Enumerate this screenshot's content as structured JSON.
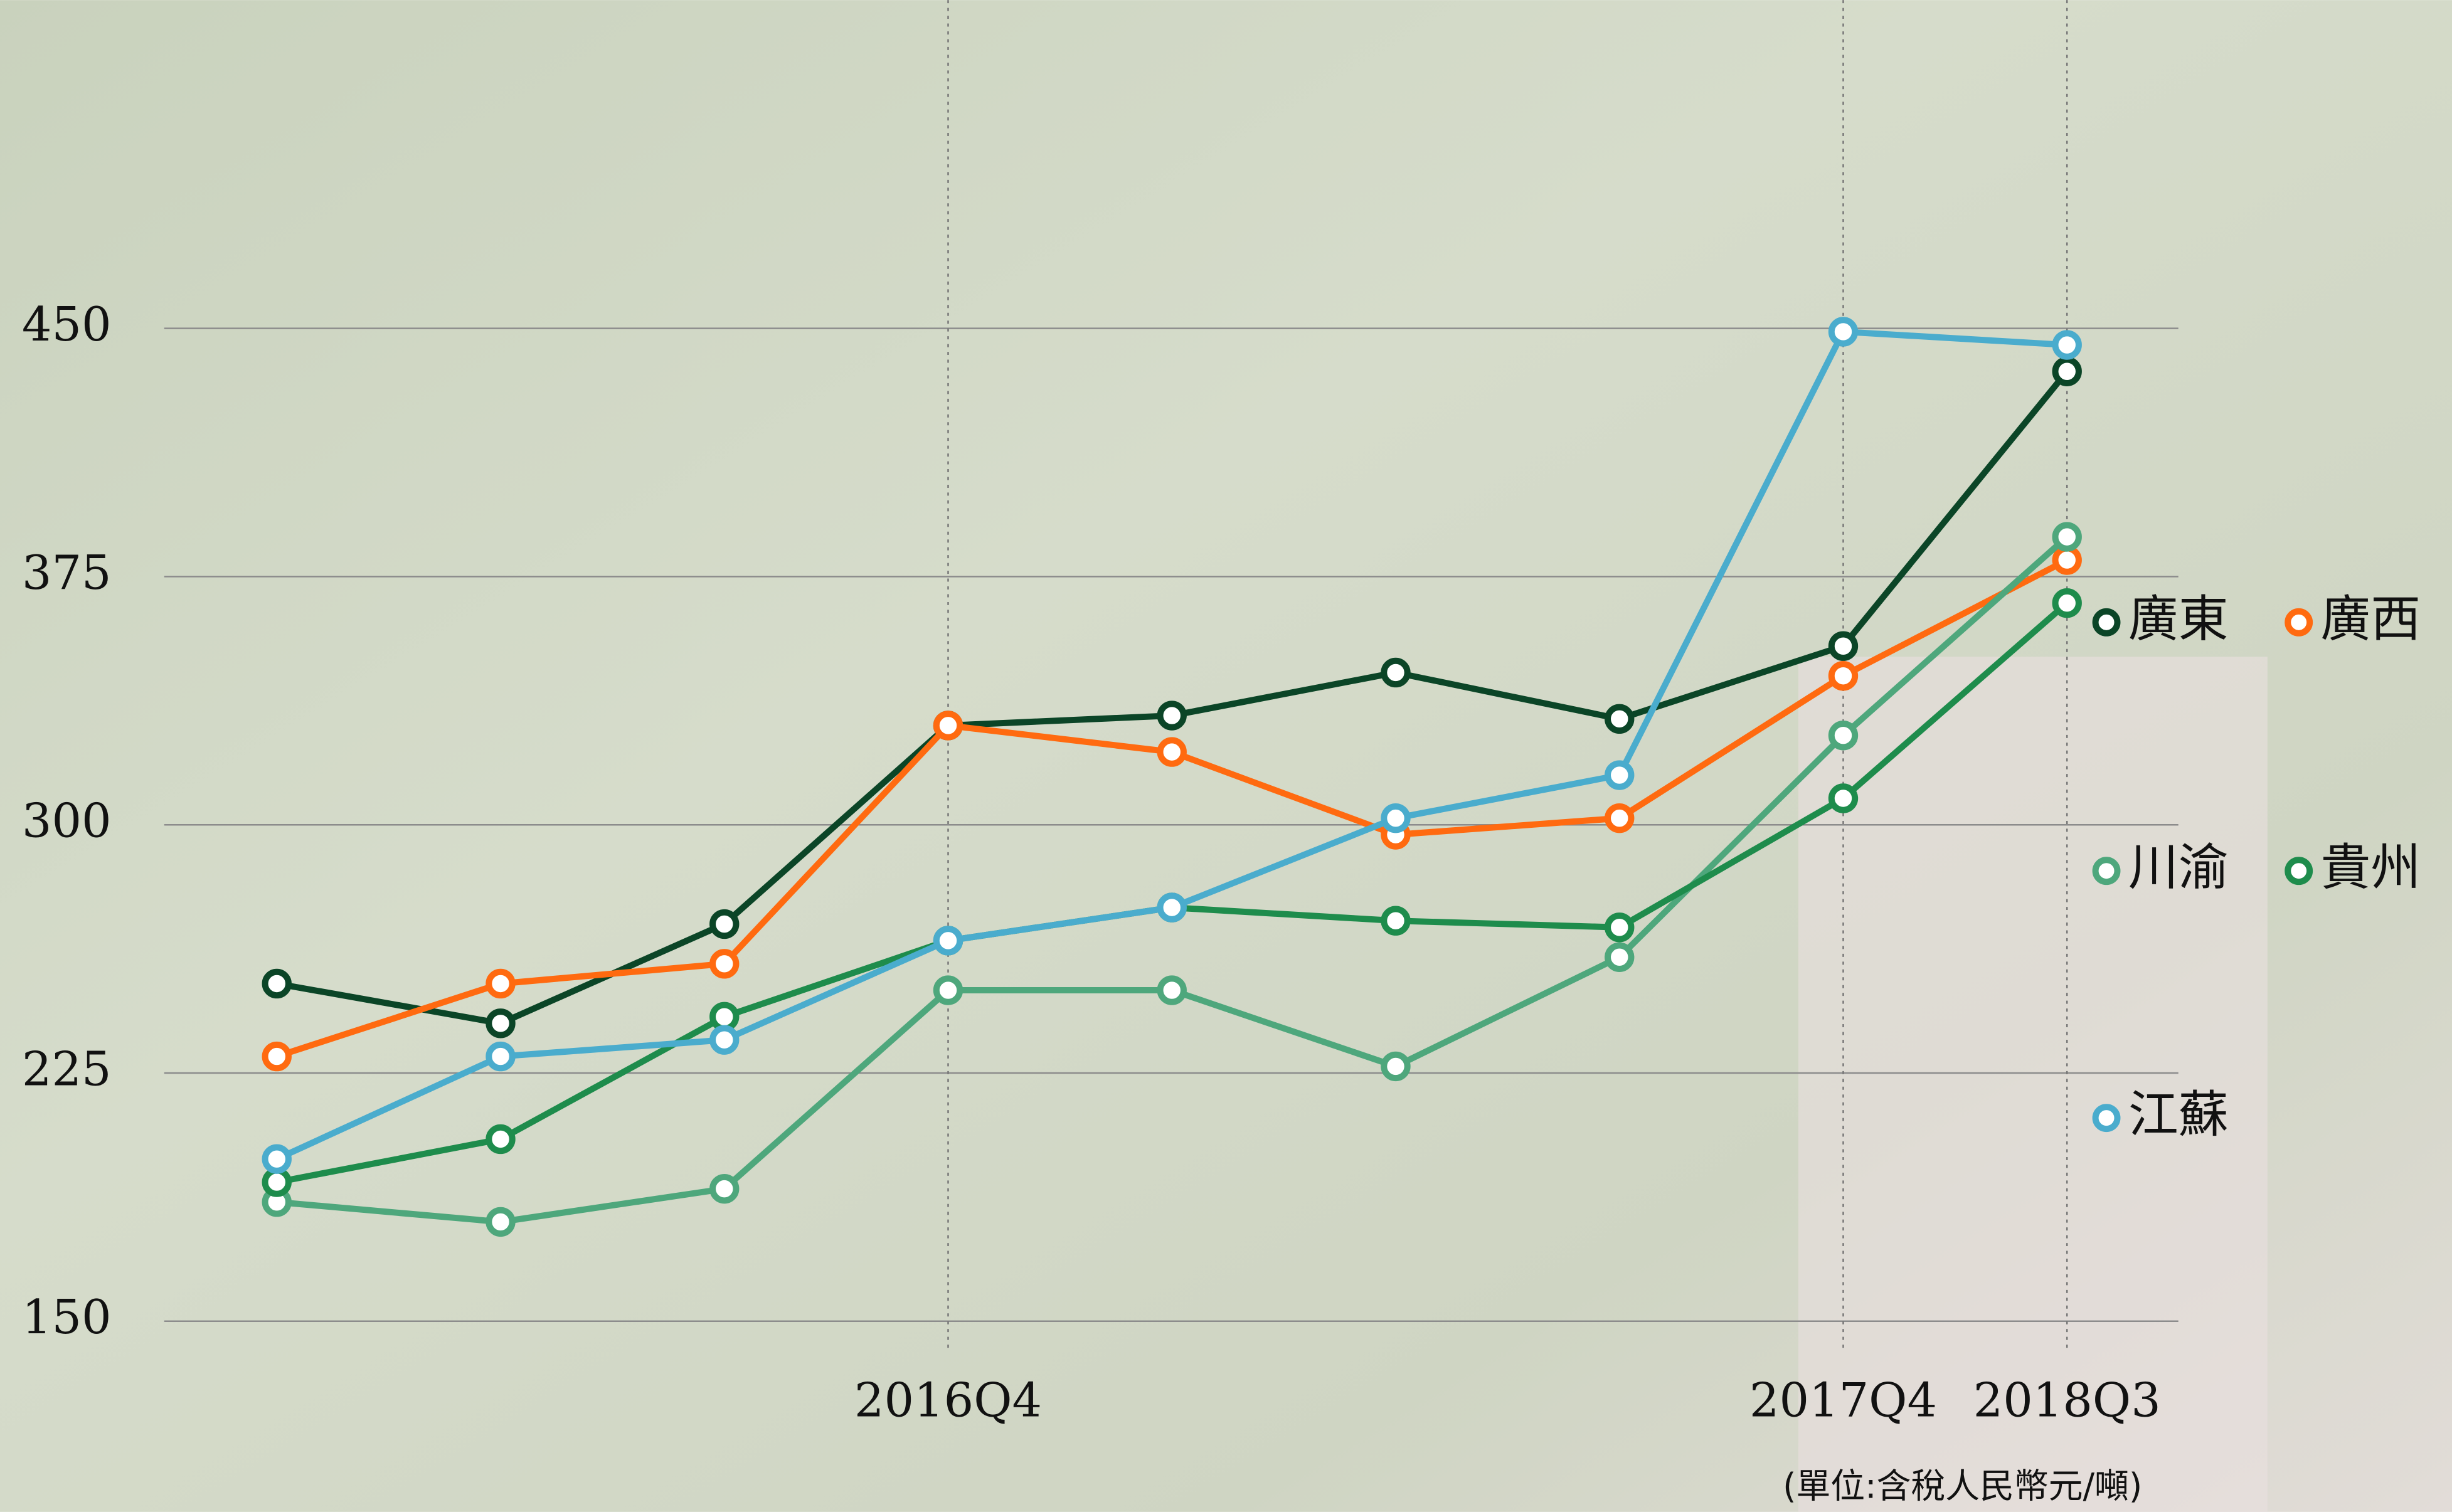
{
  "chart_data": {
    "type": "line",
    "categories": [
      null,
      null,
      null,
      "2016Q4",
      null,
      null,
      null,
      "2017Q4",
      "2018Q3"
    ],
    "series": [
      {
        "name": "廣東",
        "color": "#0b4527",
        "values": [
          252,
          240,
          270,
          330,
          333,
          346,
          332,
          354,
          437
        ]
      },
      {
        "name": "廣西",
        "color": "#ff6a10",
        "values": [
          230,
          252,
          258,
          330,
          322,
          297,
          302,
          345,
          380
        ]
      },
      {
        "name": "川渝",
        "color": "#4ea77c",
        "values": [
          186,
          180,
          190,
          250,
          250,
          227,
          260,
          327,
          387
        ]
      },
      {
        "name": "貴州",
        "color": "#1e8c4c",
        "values": [
          192,
          205,
          242,
          265,
          275,
          271,
          269,
          308,
          367
        ]
      },
      {
        "name": "江蘇",
        "color": "#4aaccd",
        "values": [
          199,
          230,
          235,
          265,
          275,
          302,
          315,
          449,
          445
        ]
      }
    ],
    "ylim": [
      150,
      450
    ],
    "yticks": [
      150,
      225,
      300,
      375,
      450
    ],
    "grid": true,
    "annotation": "(單位:含稅人民幣元/噸)"
  }
}
